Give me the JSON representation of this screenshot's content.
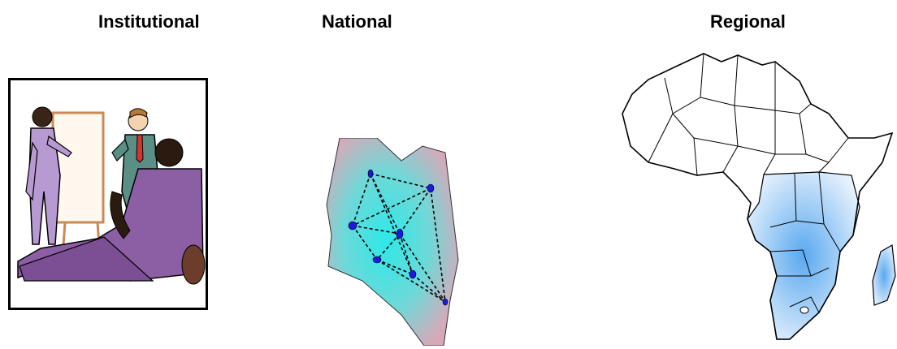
{
  "headings": {
    "institutional": "Institutional",
    "national": "National",
    "regional": "Regional"
  },
  "colors": {
    "text": "#000000",
    "suit_purple": "#8c5fa5",
    "suit_teal": "#5b8f86",
    "board": "#fff8ef",
    "kenya_fill_center": "#2ee8e8",
    "kenya_fill_edge": "#d9a8b8",
    "network_node": "#1a1ae0",
    "highlight_blue": "#5aa9f0",
    "map_stroke": "#000000"
  },
  "icons": {
    "institutional": "meeting-clipart-icon",
    "national": "country-network-icon",
    "regional": "africa-map-icon"
  }
}
